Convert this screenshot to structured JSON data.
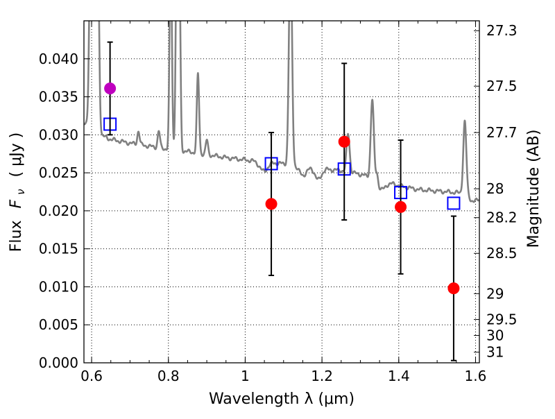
{
  "chart_data": {
    "type": "scatter",
    "title": "",
    "xlabel": "Wavelength  λ (μm)",
    "ylabel_text": "Flux",
    "ylabel_math": "F",
    "ylabel_sub": "ν",
    "ylabel_units": "( μJy )",
    "y2label": "Magnitude (AB)",
    "xlim": [
      0.58,
      1.61
    ],
    "ylim": [
      0.0,
      0.045
    ],
    "grid": true,
    "x_ticks": [
      {
        "value": 0.6,
        "label": "0.6"
      },
      {
        "value": 0.8,
        "label": "0.8"
      },
      {
        "value": 1.0,
        "label": "1"
      },
      {
        "value": 1.2,
        "label": "1.2"
      },
      {
        "value": 1.4,
        "label": "1.4"
      },
      {
        "value": 1.6,
        "label": "1.6"
      }
    ],
    "y_ticks": [
      {
        "value": 0.0,
        "label": "0.000"
      },
      {
        "value": 0.005,
        "label": "0.005"
      },
      {
        "value": 0.01,
        "label": "0.010"
      },
      {
        "value": 0.015,
        "label": "0.015"
      },
      {
        "value": 0.02,
        "label": "0.020"
      },
      {
        "value": 0.025,
        "label": "0.025"
      },
      {
        "value": 0.03,
        "label": "0.030"
      },
      {
        "value": 0.035,
        "label": "0.035"
      },
      {
        "value": 0.04,
        "label": "0.040"
      }
    ],
    "y2_ticks": [
      {
        "flux": 0.0437,
        "label": "27.3"
      },
      {
        "flux": 0.0364,
        "label": "27.5"
      },
      {
        "flux": 0.0303,
        "label": "27.7"
      },
      {
        "flux": 0.0229,
        "label": "28"
      },
      {
        "flux": 0.0191,
        "label": "28.2"
      },
      {
        "flux": 0.0144,
        "label": "28.5"
      },
      {
        "flux": 0.0091,
        "label": "29"
      },
      {
        "flux": 0.0057,
        "label": "29.5"
      },
      {
        "flux": 0.0036,
        "label": "30"
      },
      {
        "flux": 0.0014,
        "label": "31"
      }
    ],
    "observed": {
      "color": "#ff0000",
      "points": [
        {
          "x": 1.068,
          "y": 0.0209,
          "yerr_low": 0.0115,
          "yerr_high": 0.0303
        },
        {
          "x": 1.258,
          "y": 0.0291,
          "yerr_low": 0.0188,
          "yerr_high": 0.0394
        },
        {
          "x": 1.405,
          "y": 0.0205,
          "yerr_low": 0.0117,
          "yerr_high": 0.0293
        },
        {
          "x": 1.543,
          "y": 0.0098,
          "yerr_low": 0.0003,
          "yerr_high": 0.0193
        }
      ]
    },
    "observed_optical": {
      "color": "#bf00bf",
      "points": [
        {
          "x": 0.648,
          "y": 0.0361,
          "yerr_low": 0.03,
          "yerr_high": 0.0422
        }
      ]
    },
    "model_photometry": {
      "color": "#0000ff",
      "points": [
        {
          "x": 0.648,
          "y": 0.0314
        },
        {
          "x": 1.068,
          "y": 0.0262
        },
        {
          "x": 1.258,
          "y": 0.0255
        },
        {
          "x": 1.405,
          "y": 0.0224
        },
        {
          "x": 1.543,
          "y": 0.021
        }
      ]
    },
    "model_spectrum": {
      "color": "#808080",
      "continuum": [
        [
          0.58,
          0.0315
        ],
        [
          0.62,
          0.03
        ],
        [
          0.65,
          0.0294
        ],
        [
          0.7,
          0.0289
        ],
        [
          0.75,
          0.0285
        ],
        [
          0.8,
          0.0281
        ],
        [
          0.85,
          0.0278
        ],
        [
          0.9,
          0.0274
        ],
        [
          0.95,
          0.027
        ],
        [
          1.0,
          0.0267
        ],
        [
          1.05,
          0.0264
        ],
        [
          1.1,
          0.0262
        ],
        [
          1.15,
          0.0259
        ],
        [
          1.2,
          0.0255
        ],
        [
          1.25,
          0.0253
        ],
        [
          1.3,
          0.0248
        ],
        [
          1.35,
          0.0241
        ],
        [
          1.4,
          0.0233
        ],
        [
          1.45,
          0.0228
        ],
        [
          1.5,
          0.0226
        ],
        [
          1.55,
          0.0224
        ],
        [
          1.6,
          0.022
        ],
        [
          1.61,
          0.0218
        ]
      ],
      "lines": [
        {
          "center": 0.597,
          "width": 0.0035,
          "peak": 0.055
        },
        {
          "center": 0.607,
          "width": 0.0035,
          "peak": 0.055
        },
        {
          "center": 0.616,
          "width": 0.0035,
          "peak": 0.055
        },
        {
          "center": 0.722,
          "width": 0.003,
          "peak": 0.0305
        },
        {
          "center": 0.775,
          "width": 0.003,
          "peak": 0.0305
        },
        {
          "center": 0.806,
          "width": 0.003,
          "peak": 0.055
        },
        {
          "center": 0.822,
          "width": 0.003,
          "peak": 0.055
        },
        {
          "center": 0.828,
          "width": 0.003,
          "peak": 0.055
        },
        {
          "center": 0.877,
          "width": 0.003,
          "peak": 0.038
        },
        {
          "center": 0.9,
          "width": 0.003,
          "peak": 0.0293
        },
        {
          "center": 1.118,
          "width": 0.004,
          "peak": 0.055
        },
        {
          "center": 1.268,
          "width": 0.004,
          "peak": 0.0302
        },
        {
          "center": 1.331,
          "width": 0.004,
          "peak": 0.0347
        },
        {
          "center": 1.343,
          "width": 0.003,
          "peak": 0.0255
        },
        {
          "center": 1.572,
          "width": 0.004,
          "peak": 0.0318
        }
      ],
      "dips": [
        {
          "center": 1.048,
          "width": 0.01,
          "depth": 0.0012
        },
        {
          "center": 1.15,
          "width": 0.01,
          "depth": 0.0012
        },
        {
          "center": 1.19,
          "width": 0.008,
          "depth": 0.0015
        },
        {
          "center": 1.355,
          "width": 0.01,
          "depth": 0.0012
        },
        {
          "center": 1.595,
          "width": 0.01,
          "depth": 0.0008
        }
      ]
    }
  }
}
